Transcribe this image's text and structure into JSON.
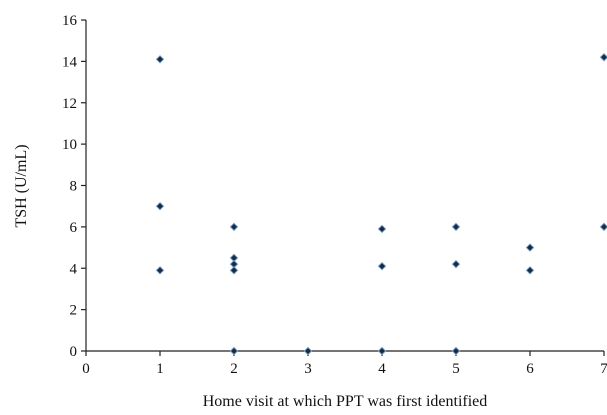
{
  "chart_data": {
    "type": "scatter",
    "title": "",
    "xlabel": "Home visit at which PPT was first identified",
    "ylabel": "TSH (U/mL)",
    "xlim": [
      0,
      7
    ],
    "ylim": [
      0,
      16
    ],
    "x_ticks": [
      0,
      1,
      2,
      3,
      4,
      5,
      6,
      7
    ],
    "y_ticks": [
      0,
      2,
      4,
      6,
      8,
      10,
      12,
      14,
      16
    ],
    "grid": false,
    "legend": "none",
    "marker": "diamond",
    "colors": {
      "marker_fill": "#1b2a44",
      "marker_edge": "#6fa2c8",
      "axis": "#222222"
    },
    "points": [
      {
        "x": 1,
        "y": 14.1
      },
      {
        "x": 1,
        "y": 7.0
      },
      {
        "x": 1,
        "y": 3.9
      },
      {
        "x": 2,
        "y": 6.0
      },
      {
        "x": 2,
        "y": 4.5
      },
      {
        "x": 2,
        "y": 4.2
      },
      {
        "x": 2,
        "y": 3.9
      },
      {
        "x": 2,
        "y": 0.0
      },
      {
        "x": 3,
        "y": 0.0
      },
      {
        "x": 4,
        "y": 5.9
      },
      {
        "x": 4,
        "y": 4.1
      },
      {
        "x": 4,
        "y": 0.0
      },
      {
        "x": 5,
        "y": 6.0
      },
      {
        "x": 5,
        "y": 4.2
      },
      {
        "x": 5,
        "y": 0.0
      },
      {
        "x": 6,
        "y": 5.0
      },
      {
        "x": 6,
        "y": 3.9
      },
      {
        "x": 7,
        "y": 14.2
      },
      {
        "x": 7,
        "y": 6.0
      }
    ]
  }
}
